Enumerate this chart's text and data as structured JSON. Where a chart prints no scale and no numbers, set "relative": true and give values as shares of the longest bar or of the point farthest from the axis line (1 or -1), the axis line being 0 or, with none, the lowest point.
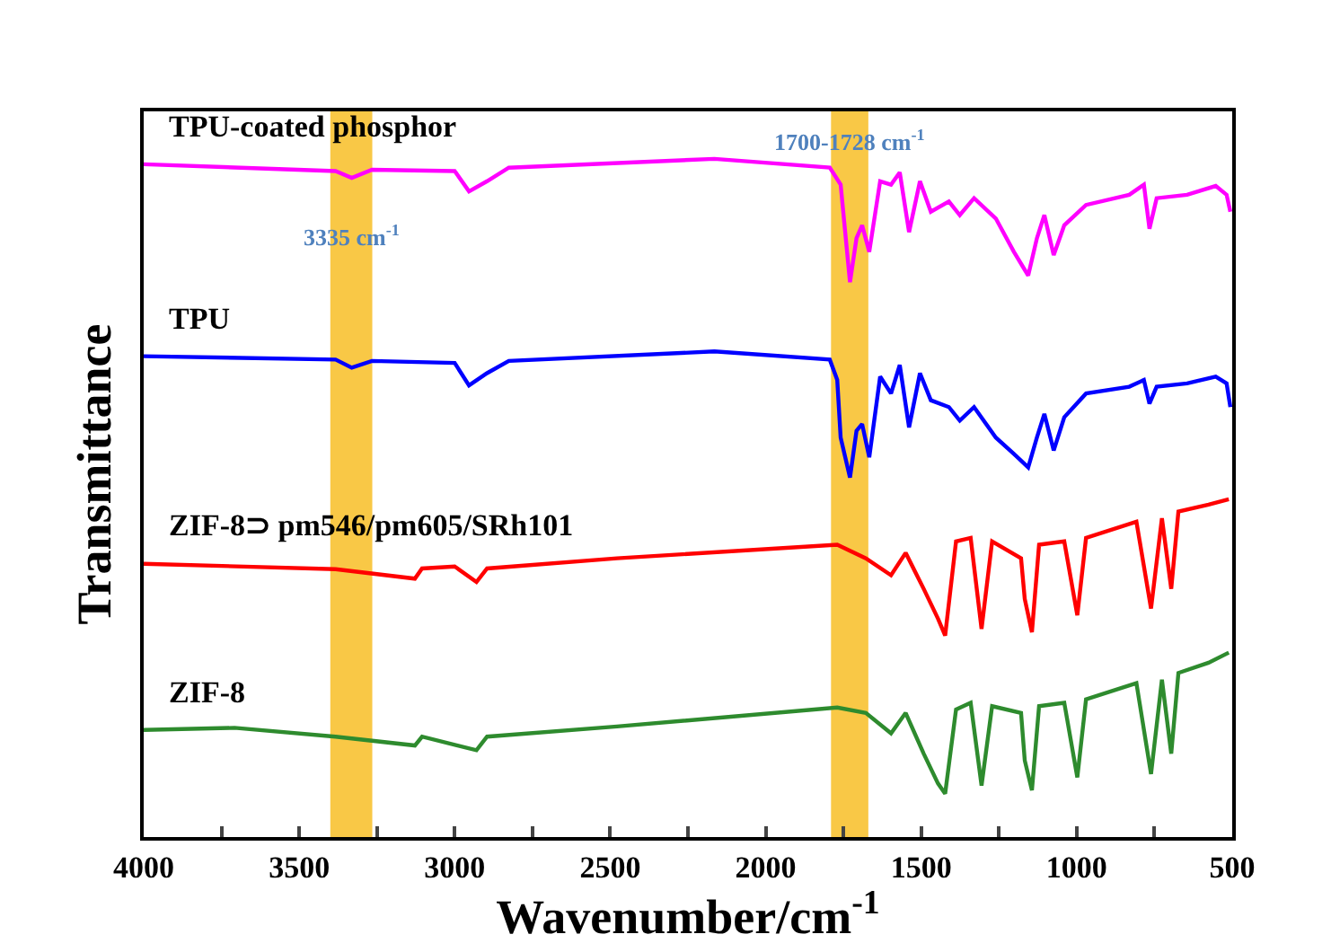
{
  "chart_data": {
    "type": "line",
    "relative": true,
    "xlabel": "Wavenumber/cm$^{-1}$",
    "ylabel": "Transmittance",
    "xlim": [
      4000,
      500
    ],
    "xticks": [
      4000,
      {
        "value": 3750,
        "label": null
      },
      3500,
      {
        "value": 3250,
        "label": null
      },
      3000,
      {
        "value": 2750,
        "label": null
      },
      2500,
      {
        "value": 2250,
        "label": null
      },
      2000,
      {
        "value": 1750,
        "label": null
      },
      1500,
      {
        "value": 1250,
        "label": null
      },
      1000,
      {
        "value": 750,
        "label": null
      },
      500
    ],
    "tick_labels": "x",
    "grid": false,
    "legend": false,
    "line_style": "solid",
    "marker": "none",
    "bands": [
      {
        "axis": "x",
        "from": 3400,
        "to": 3265,
        "color": "#f9c846"
      },
      {
        "axis": "x",
        "from": 1790,
        "to": 1670,
        "color": "#f9c846"
      }
    ],
    "annotations": [
      "3335 cm$^{-1}$",
      "1700-1728 cm$^{-1}$"
    ],
    "series": [
      {
        "name": "TPU-coated phosphor",
        "color": "#ff00ff",
        "x": [
          4000,
          3383,
          3331,
          3266,
          3000,
          2954,
          2896,
          2826,
          2165,
          1794,
          1759,
          1729,
          1708,
          1690,
          1667,
          1632,
          1597,
          1569,
          1539,
          1504,
          1469,
          1411,
          1376,
          1330,
          1260,
          1202,
          1156,
          1128,
          1104,
          1074,
          1040,
          970,
          831,
          784,
          766,
          743,
          645,
          553,
          518,
          506
        ],
        "values": [
          0.992,
          0.982,
          0.972,
          0.984,
          0.982,
          0.952,
          0.967,
          0.987,
          1.0,
          0.987,
          0.962,
          0.818,
          0.883,
          0.902,
          0.863,
          0.967,
          0.962,
          0.98,
          0.892,
          0.967,
          0.922,
          0.937,
          0.917,
          0.942,
          0.912,
          0.863,
          0.828,
          0.883,
          0.917,
          0.858,
          0.902,
          0.932,
          0.947,
          0.962,
          0.897,
          0.942,
          0.947,
          0.96,
          0.947,
          0.922
        ]
      },
      {
        "name": "TPU",
        "color": "#0000ff",
        "x": [
          4000,
          3383,
          3331,
          3266,
          3000,
          2954,
          2896,
          2826,
          2165,
          1794,
          1770,
          1759,
          1729,
          1708,
          1690,
          1667,
          1632,
          1597,
          1569,
          1539,
          1504,
          1469,
          1411,
          1376,
          1330,
          1260,
          1202,
          1156,
          1128,
          1104,
          1074,
          1040,
          970,
          831,
          784,
          766,
          743,
          645,
          553,
          518,
          506
        ],
        "values": [
          0.709,
          0.704,
          0.692,
          0.702,
          0.699,
          0.666,
          0.684,
          0.702,
          0.716,
          0.704,
          0.674,
          0.589,
          0.53,
          0.599,
          0.609,
          0.56,
          0.679,
          0.654,
          0.696,
          0.604,
          0.684,
          0.644,
          0.634,
          0.614,
          0.634,
          0.589,
          0.565,
          0.545,
          0.589,
          0.624,
          0.57,
          0.619,
          0.654,
          0.664,
          0.674,
          0.639,
          0.664,
          0.669,
          0.679,
          0.669,
          0.634
        ]
      },
      {
        "name": "ZIF-8⊃ pm546/pm605/SRh101",
        "color": "#ff0000",
        "x": [
          4000,
          3383,
          3128,
          3105,
          3000,
          2930,
          2896,
          2478,
          1770,
          1678,
          1597,
          1550,
          1492,
          1446,
          1423,
          1388,
          1341,
          1306,
          1272,
          1179,
          1167,
          1144,
          1121,
          1040,
          998,
          970,
          808,
          761,
          726,
          696,
          673,
          576,
          511
        ],
        "values": [
          0.403,
          0.395,
          0.381,
          0.396,
          0.399,
          0.376,
          0.396,
          0.411,
          0.431,
          0.411,
          0.386,
          0.419,
          0.366,
          0.322,
          0.297,
          0.436,
          0.441,
          0.307,
          0.436,
          0.411,
          0.351,
          0.302,
          0.431,
          0.436,
          0.327,
          0.441,
          0.465,
          0.337,
          0.47,
          0.366,
          0.48,
          0.49,
          0.498
        ]
      },
      {
        "name": "ZIF-8",
        "color": "#2e8b2e",
        "x": [
          4000,
          3708,
          3383,
          3128,
          3105,
          2930,
          2896,
          2478,
          1770,
          1678,
          1597,
          1550,
          1492,
          1446,
          1423,
          1388,
          1341,
          1306,
          1272,
          1179,
          1167,
          1144,
          1121,
          1040,
          998,
          970,
          808,
          761,
          726,
          696,
          673,
          576,
          511
        ],
        "values": [
          0.158,
          0.161,
          0.148,
          0.135,
          0.148,
          0.128,
          0.148,
          0.163,
          0.191,
          0.183,
          0.153,
          0.183,
          0.123,
          0.079,
          0.064,
          0.188,
          0.198,
          0.076,
          0.193,
          0.183,
          0.113,
          0.069,
          0.193,
          0.198,
          0.088,
          0.203,
          0.227,
          0.093,
          0.232,
          0.123,
          0.242,
          0.257,
          0.272
        ]
      }
    ]
  }
}
